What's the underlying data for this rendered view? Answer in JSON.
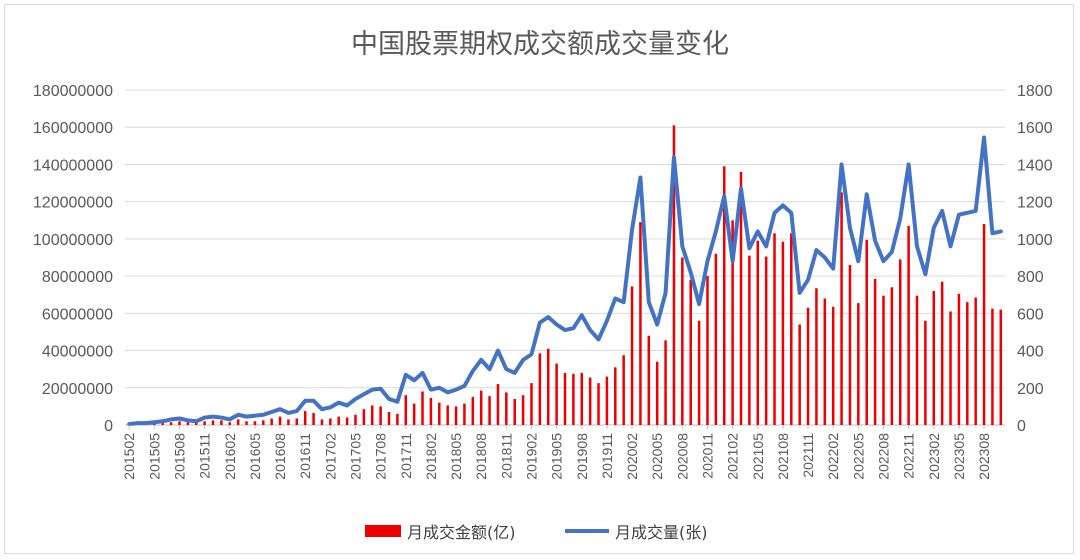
{
  "chart_data": {
    "type": "bar+line",
    "title": "中国股票期权成交额成交量变化",
    "categories": [
      "201502",
      "201503",
      "201504",
      "201505",
      "201506",
      "201507",
      "201508",
      "201509",
      "201510",
      "201511",
      "201512",
      "201601",
      "201602",
      "201603",
      "201604",
      "201605",
      "201606",
      "201607",
      "201608",
      "201609",
      "201610",
      "201611",
      "201612",
      "201701",
      "201702",
      "201703",
      "201704",
      "201705",
      "201706",
      "201707",
      "201708",
      "201709",
      "201710",
      "201711",
      "201712",
      "201801",
      "201802",
      "201803",
      "201804",
      "201805",
      "201806",
      "201807",
      "201808",
      "201809",
      "201810",
      "201811",
      "201812",
      "201901",
      "201902",
      "201903",
      "201904",
      "201905",
      "201906",
      "201907",
      "201908",
      "201909",
      "201910",
      "201911",
      "201912",
      "202001",
      "202002",
      "202003",
      "202004",
      "202005",
      "202006",
      "202007",
      "202008",
      "202009",
      "202010",
      "202011",
      "202012",
      "202101",
      "202102",
      "202103",
      "202104",
      "202105",
      "202106",
      "202107",
      "202108",
      "202109",
      "202110",
      "202111",
      "202112",
      "202201",
      "202202",
      "202203",
      "202204",
      "202205",
      "202206",
      "202207",
      "202208",
      "202209",
      "202210",
      "202211",
      "202212",
      "202301",
      "202302",
      "202303",
      "202304",
      "202305",
      "202306",
      "202307",
      "202308",
      "202309",
      "202310"
    ],
    "x_tick_labels": [
      "201502",
      "201505",
      "201508",
      "201511",
      "201602",
      "201605",
      "201608",
      "201611",
      "201702",
      "201705",
      "201708",
      "201711",
      "201802",
      "201805",
      "201808",
      "201811",
      "201902",
      "201905",
      "201908",
      "201911",
      "202002",
      "202005",
      "202008",
      "202011",
      "202102",
      "202105",
      "202108",
      "202111",
      "202202",
      "202205",
      "202208",
      "202211",
      "202302",
      "202305",
      "202308"
    ],
    "series": [
      {
        "name": "月成交金额(亿)",
        "type": "bar",
        "axis": "left",
        "color": "#ee0000",
        "values": [
          200000,
          300000,
          400000,
          600000,
          1000000,
          1500000,
          2000000,
          1500000,
          1200000,
          2000000,
          2500000,
          2500000,
          1500000,
          3000000,
          2000000,
          2000000,
          2500000,
          3500000,
          4500000,
          3000000,
          3500000,
          7500000,
          6500000,
          3000000,
          3500000,
          4500000,
          4000000,
          5500000,
          8500000,
          10500000,
          10000000,
          7000000,
          6000000,
          16000000,
          11500000,
          18000000,
          14500000,
          12000000,
          10500000,
          10000000,
          11500000,
          15000000,
          18500000,
          15500000,
          22000000,
          17500000,
          14000000,
          16000000,
          22500000,
          38500000,
          41000000,
          33000000,
          28000000,
          27500000,
          28000000,
          25500000,
          22500000,
          26000000,
          31000000,
          37500000,
          74500000,
          109000000,
          48000000,
          34000000,
          45500000,
          161000000,
          90000000,
          78000000,
          56000000,
          80000000,
          92000000,
          139000000,
          110000000,
          136000000,
          91000000,
          99000000,
          90500000,
          103000000,
          98500000,
          103000000,
          54000000,
          63000000,
          73500000,
          68000000,
          63500000,
          125000000,
          86000000,
          65500000,
          99500000,
          78500000,
          69500000,
          74000000,
          89000000,
          107000000,
          69500000,
          56000000,
          72000000,
          77000000,
          61000000,
          70500000,
          66000000,
          68500000,
          108000000,
          62500000,
          62000000
        ]
      },
      {
        "name": "月成交量(张)",
        "type": "line",
        "axis": "right",
        "color": "#4472c4",
        "values": [
          5,
          10,
          10,
          15,
          20,
          30,
          35,
          25,
          20,
          40,
          45,
          40,
          30,
          55,
          45,
          50,
          55,
          70,
          85,
          65,
          75,
          130,
          130,
          85,
          95,
          120,
          105,
          140,
          165,
          190,
          195,
          140,
          125,
          270,
          240,
          280,
          190,
          200,
          175,
          190,
          210,
          290,
          350,
          300,
          400,
          300,
          280,
          350,
          380,
          550,
          580,
          540,
          510,
          520,
          590,
          510,
          460,
          560,
          680,
          660,
          1050,
          1330,
          660,
          540,
          710,
          1440,
          960,
          820,
          650,
          880,
          1040,
          1230,
          880,
          1270,
          950,
          1040,
          960,
          1140,
          1180,
          1140,
          710,
          780,
          940,
          900,
          840,
          1400,
          1060,
          880,
          1240,
          990,
          880,
          930,
          1110,
          1400,
          960,
          810,
          1060,
          1150,
          960,
          1130,
          1140,
          1150,
          1545,
          1030,
          1040
        ]
      }
    ],
    "y_left": {
      "min": 0,
      "max": 180000000,
      "ticks": [
        "0",
        "20000000",
        "40000000",
        "60000000",
        "80000000",
        "100000000",
        "120000000",
        "140000000",
        "160000000",
        "180000000"
      ]
    },
    "y_right": {
      "min": 0,
      "max": 1800,
      "ticks": [
        "0",
        "200",
        "400",
        "600",
        "800",
        "1000",
        "1200",
        "1400",
        "1600",
        "1800"
      ]
    },
    "grid": true,
    "legend_position": "bottom"
  }
}
